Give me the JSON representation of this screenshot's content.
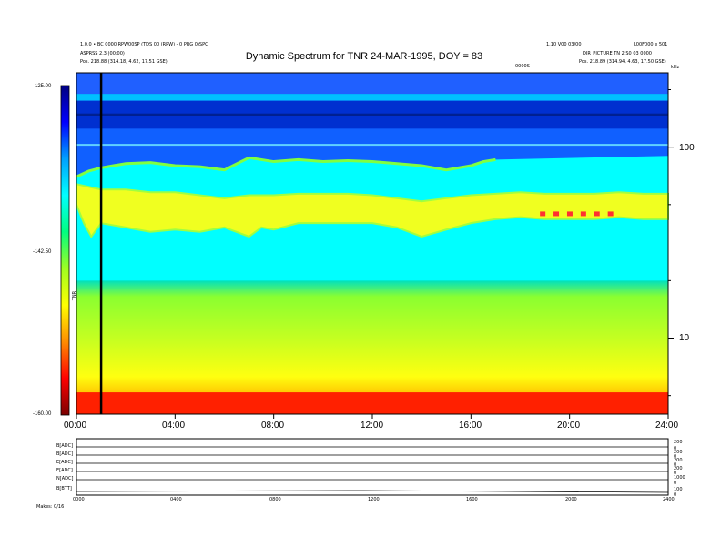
{
  "header": {
    "left_line1": "1.0.0 • BC 0000 RPW00SP (TDS 00 (RPW) - 0 PRG 0)SPC",
    "left_line2": "ASPRSS 2.3 (00:00)",
    "left_line3": "Pos.   218.88 (314.18, 4.62, 17.51 GSE)",
    "right_line1": "1.10 V00 03/00",
    "right_line2": "DIR_PICTURE TN 2 S0 03 0000",
    "right_line3": "Pos.   218.89 (314.94, 4.63, 17.50 GSE)",
    "right_corner": "L00F000 e 501",
    "mid_small": "0000S",
    "khz_label": "kHz"
  },
  "chart_data": {
    "type": "heatmap",
    "title": "Dynamic Spectrum for TNR 24-MAR-1995, DOY = 83",
    "x_range_hours": [
      0,
      24
    ],
    "x_ticks": [
      "00:00",
      "04:00",
      "08:00",
      "12:00",
      "16:00",
      "20:00",
      "24:00"
    ],
    "y_scale": "log",
    "y_range_khz": [
      4,
      245
    ],
    "y_ticks": [
      {
        "value": 100,
        "label": "100"
      },
      {
        "value": 10,
        "label": "10"
      }
    ],
    "colorbar": {
      "range": [
        -160,
        -125
      ],
      "ticks": [
        "-125.00",
        "-142.50",
        "-160.00"
      ],
      "label": "TNR",
      "colors": [
        "#7a0000",
        "#ff0000",
        "#ff8c00",
        "#ffff00",
        "#a0ff20",
        "#00ff80",
        "#00ffff",
        "#00a0ff",
        "#0000ff",
        "#000080"
      ]
    },
    "marker_line_hour": 1.0,
    "ridge_upper_khz": [
      [
        0,
        70
      ],
      [
        0.5,
        75
      ],
      [
        1.0,
        78
      ],
      [
        2.0,
        82
      ],
      [
        3.0,
        83
      ],
      [
        4.0,
        80
      ],
      [
        5.0,
        79
      ],
      [
        6.0,
        76
      ],
      [
        7.0,
        88
      ],
      [
        8.0,
        84
      ],
      [
        9.0,
        86
      ],
      [
        10.0,
        84
      ],
      [
        11.0,
        85
      ],
      [
        12.0,
        84
      ],
      [
        13.0,
        82
      ],
      [
        14.0,
        80
      ],
      [
        15.0,
        76
      ],
      [
        16.0,
        80
      ],
      [
        16.5,
        84
      ],
      [
        17.0,
        86
      ]
    ],
    "ridge_lower_khz": [
      [
        0,
        50
      ],
      [
        0.3,
        40
      ],
      [
        0.6,
        34
      ],
      [
        1.0,
        40
      ],
      [
        2.0,
        38
      ],
      [
        3.0,
        36
      ],
      [
        4.0,
        37
      ],
      [
        5.0,
        36
      ],
      [
        6.0,
        38
      ],
      [
        7.0,
        34
      ],
      [
        7.5,
        38
      ],
      [
        8.0,
        37
      ],
      [
        9.0,
        40
      ],
      [
        10.0,
        40
      ],
      [
        11.0,
        40
      ],
      [
        12.0,
        40
      ],
      [
        13.0,
        38
      ],
      [
        14.0,
        34
      ],
      [
        15.0,
        37
      ],
      [
        16.0,
        40
      ],
      [
        17.0,
        42
      ],
      [
        18.0,
        43
      ],
      [
        19.0,
        42
      ],
      [
        20.0,
        42
      ],
      [
        21.0,
        42
      ],
      [
        22.0,
        43
      ],
      [
        23.0,
        42
      ],
      [
        24.0,
        42
      ]
    ],
    "ridge_top_khz": [
      [
        0,
        64
      ],
      [
        1.0,
        60
      ],
      [
        2.0,
        60
      ],
      [
        3.0,
        58
      ],
      [
        4.0,
        58
      ],
      [
        5.0,
        56
      ],
      [
        6.0,
        54
      ],
      [
        7.0,
        56
      ],
      [
        8.0,
        56
      ],
      [
        9.0,
        57
      ],
      [
        10.0,
        57
      ],
      [
        11.0,
        57
      ],
      [
        12.0,
        56
      ],
      [
        13.0,
        54
      ],
      [
        14.0,
        52
      ],
      [
        15.0,
        54
      ],
      [
        16.0,
        56
      ],
      [
        17.0,
        57
      ],
      [
        18.0,
        58
      ],
      [
        19.0,
        57
      ],
      [
        20.0,
        57
      ],
      [
        21.0,
        57
      ],
      [
        22.0,
        58
      ],
      [
        23.0,
        57
      ],
      [
        24.0,
        57
      ]
    ]
  },
  "bottom_panel": {
    "row_labels": [
      "B[ADC]",
      "B[ADC]",
      "E[ADC]",
      "E[ADC]",
      "N[ADC]",
      "B[BTT]"
    ],
    "right_labels": [
      "200",
      "0",
      "200",
      "0",
      "200",
      "0",
      "200",
      "0",
      "1000",
      "0",
      "100",
      "0"
    ],
    "x_ticks": [
      "0000",
      "0400",
      "0800",
      "1200",
      "1600",
      "2000",
      "2400"
    ],
    "footer": "Makes: 0/16"
  }
}
